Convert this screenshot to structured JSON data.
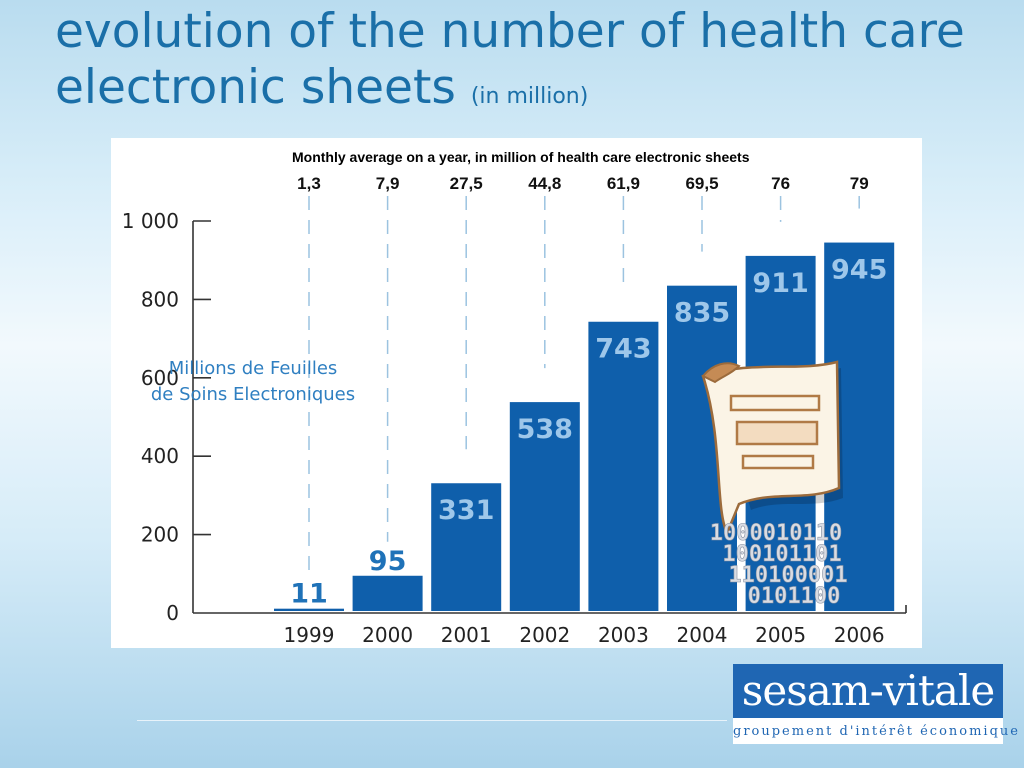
{
  "slide": {
    "title": "evolution of the number of health care electronic sheets",
    "title_suffix": "(in million)"
  },
  "chart_data": {
    "type": "bar",
    "title": "Monthly average on a year, in million of health care electronic sheets",
    "annotation": "Millions de Feuilles de Soins Electroniques",
    "annotation_lines": [
      "Millions de Feuilles",
      "de Soins Electroniques"
    ],
    "categories": [
      "1999",
      "2000",
      "2001",
      "2002",
      "2003",
      "2004",
      "2005",
      "2006"
    ],
    "values": [
      11,
      95,
      331,
      538,
      743,
      835,
      911,
      945
    ],
    "value_labels": [
      "11",
      "95",
      "331",
      "538",
      "743",
      "835",
      "911",
      "945"
    ],
    "monthly_average": [
      "1,3",
      "7,9",
      "27,5",
      "44,8",
      "61,9",
      "69,5",
      "76",
      "79"
    ],
    "ylim": [
      0,
      1000
    ],
    "yticks": [
      0,
      200,
      400,
      600,
      800,
      1000
    ],
    "ytick_labels": [
      "0",
      "200",
      "400",
      "600",
      "800",
      "1 000"
    ],
    "bar_color": "#0f5fab",
    "label_color_on_bar": "#9ec7ea",
    "label_color_above_bar": "#1f72b8",
    "annotation_color": "#2f7fc1",
    "illustration": {
      "binary_lines": [
        "1000010110",
        "100101101",
        "110100001",
        "0101100"
      ]
    }
  },
  "logo": {
    "name": "sesam-vitale",
    "tagline": "groupement d'intérêt économique"
  }
}
